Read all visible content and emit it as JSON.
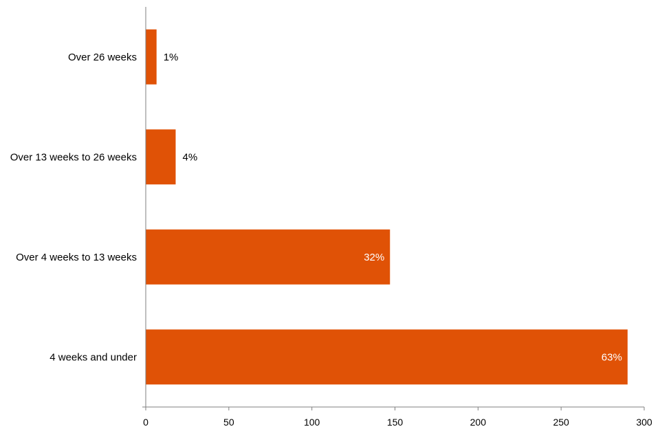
{
  "chart_data": {
    "type": "bar",
    "orientation": "horizontal",
    "categories": [
      "Over 26 weeks",
      "Over 13 weeks to 26 weeks",
      "Over 4 weeks to 13 weeks",
      "4 weeks and under"
    ],
    "values": [
      6.5,
      18,
      147,
      290
    ],
    "data_labels": [
      "1%",
      "4%",
      "32%",
      "63%"
    ],
    "title": "",
    "xlabel": "",
    "ylabel": "",
    "xlim": [
      0,
      300
    ],
    "x_ticks": [
      0,
      50,
      100,
      150,
      200,
      250,
      300
    ],
    "x_tick_labels": [
      "0",
      "50",
      "100",
      "150",
      "200",
      "250",
      "300"
    ],
    "grid": false,
    "legend": "none",
    "bar_color": "#e05206",
    "inside_label_color": "#ffffff",
    "outside_label_color": "#000000"
  }
}
